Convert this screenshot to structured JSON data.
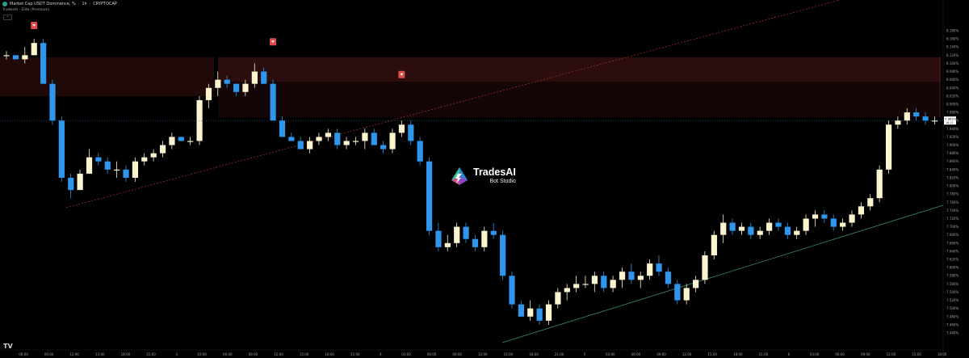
{
  "header": {
    "symbol_title": "Market Cap USDT Dominance, %",
    "interval": "1h",
    "exchange": "CRYPTOCAP",
    "indicator_label": "TradesAI - Elite (Premium)",
    "collapse_label": "^"
  },
  "logo": {
    "name": "TradesAI",
    "sub": "Bot Studio"
  },
  "tv_logo": "TV",
  "price_axis": {
    "labels": [
      "8.180%",
      "8.160%",
      "8.140%",
      "8.120%",
      "8.100%",
      "8.080%",
      "8.060%",
      "8.040%",
      "8.020%",
      "8.000%",
      "7.980%",
      "7.960%",
      "7.940%",
      "7.920%",
      "7.900%",
      "7.880%",
      "7.860%",
      "7.840%",
      "7.820%",
      "7.800%",
      "7.780%",
      "7.760%",
      "7.740%",
      "7.720%",
      "7.700%",
      "7.680%",
      "7.660%",
      "7.640%",
      "7.620%",
      "7.600%",
      "7.580%",
      "7.560%",
      "7.540%",
      "7.520%",
      "7.500%",
      "7.480%",
      "7.460%",
      "7.440%"
    ],
    "current_price": "7.962%",
    "current_sub": "16:15"
  },
  "time_axis": [
    "06:00",
    "09:00",
    "12:00",
    "15:00",
    "18:00",
    "21:00",
    "3",
    "03:00",
    "06:00",
    "09:00",
    "12:00",
    "15:00",
    "18:00",
    "21:00",
    "4",
    "03:00",
    "06:00",
    "09:00",
    "12:00",
    "15:00",
    "18:00",
    "21:00",
    "5",
    "03:00",
    "06:00",
    "09:00",
    "12:00",
    "15:00",
    "18:00",
    "21:00",
    "6",
    "03:00",
    "06:00",
    "09:00",
    "12:00",
    "15:00",
    "18:00"
  ],
  "colors": {
    "up": "#fcf3cf",
    "down": "#2e96ec",
    "zone": "#c23a3a",
    "signal": "#e04a4a",
    "trend_up": "#3c8a6a",
    "trend_red": "#a33",
    "price_line": "#2e6fb5"
  },
  "chart_data": {
    "type": "candlestick",
    "symbol": "Market Cap USDT Dominance, %",
    "interval": "1h",
    "ylim": [
      7.43,
      8.19
    ],
    "candles_ohlc": [
      [
        8.12,
        8.13,
        8.11,
        8.12
      ],
      [
        8.12,
        8.12,
        8.11,
        8.11
      ],
      [
        8.11,
        8.14,
        8.1,
        8.12
      ],
      [
        8.12,
        8.16,
        8.12,
        8.15
      ],
      [
        8.15,
        8.16,
        8.05,
        8.05
      ],
      [
        8.05,
        8.06,
        7.95,
        7.96
      ],
      [
        7.96,
        7.97,
        7.81,
        7.82
      ],
      [
        7.82,
        7.83,
        7.77,
        7.79
      ],
      [
        7.79,
        7.84,
        7.79,
        7.83
      ],
      [
        7.83,
        7.89,
        7.83,
        7.87
      ],
      [
        7.87,
        7.88,
        7.85,
        7.86
      ],
      [
        7.86,
        7.87,
        7.83,
        7.84
      ],
      [
        7.84,
        7.86,
        7.82,
        7.84
      ],
      [
        7.84,
        7.85,
        7.81,
        7.82
      ],
      [
        7.82,
        7.87,
        7.81,
        7.86
      ],
      [
        7.86,
        7.88,
        7.85,
        7.87
      ],
      [
        7.87,
        7.89,
        7.86,
        7.88
      ],
      [
        7.88,
        7.91,
        7.87,
        7.9
      ],
      [
        7.9,
        7.93,
        7.89,
        7.92
      ],
      [
        7.92,
        7.92,
        7.91,
        7.91
      ],
      [
        7.91,
        7.92,
        7.9,
        7.91
      ],
      [
        7.91,
        8.02,
        7.9,
        8.01
      ],
      [
        8.01,
        8.05,
        7.99,
        8.04
      ],
      [
        8.04,
        8.08,
        8.02,
        8.06
      ],
      [
        8.06,
        8.07,
        8.04,
        8.05
      ],
      [
        8.05,
        8.05,
        8.02,
        8.03
      ],
      [
        8.03,
        8.06,
        8.02,
        8.05
      ],
      [
        8.05,
        8.1,
        8.04,
        8.08
      ],
      [
        8.08,
        8.09,
        8.05,
        8.05
      ],
      [
        8.05,
        8.06,
        7.96,
        7.96
      ],
      [
        7.96,
        7.97,
        7.92,
        7.92
      ],
      [
        7.92,
        7.93,
        7.91,
        7.91
      ],
      [
        7.91,
        7.92,
        7.89,
        7.89
      ],
      [
        7.89,
        7.92,
        7.88,
        7.91
      ],
      [
        7.91,
        7.93,
        7.9,
        7.92
      ],
      [
        7.92,
        7.94,
        7.91,
        7.93
      ],
      [
        7.93,
        7.94,
        7.89,
        7.9
      ],
      [
        7.9,
        7.92,
        7.89,
        7.91
      ],
      [
        7.91,
        7.92,
        7.9,
        7.91
      ],
      [
        7.91,
        7.94,
        7.89,
        7.93
      ],
      [
        7.93,
        7.94,
        7.9,
        7.9
      ],
      [
        7.9,
        7.91,
        7.88,
        7.89
      ],
      [
        7.89,
        7.94,
        7.88,
        7.93
      ],
      [
        7.93,
        7.96,
        7.92,
        7.95
      ],
      [
        7.95,
        7.96,
        7.9,
        7.91
      ],
      [
        7.91,
        7.92,
        7.85,
        7.86
      ],
      [
        7.86,
        7.87,
        7.68,
        7.69
      ],
      [
        7.69,
        7.71,
        7.64,
        7.65
      ],
      [
        7.65,
        7.68,
        7.64,
        7.66
      ],
      [
        7.66,
        7.71,
        7.65,
        7.7
      ],
      [
        7.7,
        7.71,
        7.66,
        7.67
      ],
      [
        7.67,
        7.68,
        7.64,
        7.65
      ],
      [
        7.65,
        7.7,
        7.64,
        7.69
      ],
      [
        7.69,
        7.71,
        7.67,
        7.68
      ],
      [
        7.68,
        7.69,
        7.57,
        7.58
      ],
      [
        7.58,
        7.59,
        7.5,
        7.51
      ],
      [
        7.51,
        7.52,
        7.48,
        7.48
      ],
      [
        7.48,
        7.52,
        7.47,
        7.5
      ],
      [
        7.5,
        7.51,
        7.46,
        7.47
      ],
      [
        7.47,
        7.52,
        7.46,
        7.51
      ],
      [
        7.51,
        7.55,
        7.5,
        7.54
      ],
      [
        7.54,
        7.56,
        7.52,
        7.55
      ],
      [
        7.55,
        7.58,
        7.54,
        7.56
      ],
      [
        7.56,
        7.58,
        7.55,
        7.56
      ],
      [
        7.56,
        7.59,
        7.54,
        7.58
      ],
      [
        7.58,
        7.59,
        7.54,
        7.55
      ],
      [
        7.55,
        7.58,
        7.54,
        7.57
      ],
      [
        7.57,
        7.6,
        7.55,
        7.59
      ],
      [
        7.59,
        7.61,
        7.56,
        7.57
      ],
      [
        7.57,
        7.59,
        7.55,
        7.58
      ],
      [
        7.58,
        7.62,
        7.57,
        7.61
      ],
      [
        7.61,
        7.63,
        7.58,
        7.59
      ],
      [
        7.59,
        7.6,
        7.55,
        7.56
      ],
      [
        7.56,
        7.57,
        7.51,
        7.52
      ],
      [
        7.52,
        7.56,
        7.51,
        7.55
      ],
      [
        7.55,
        7.58,
        7.54,
        7.57
      ],
      [
        7.57,
        7.64,
        7.56,
        7.63
      ],
      [
        7.63,
        7.69,
        7.62,
        7.68
      ],
      [
        7.68,
        7.73,
        7.66,
        7.71
      ],
      [
        7.71,
        7.72,
        7.68,
        7.69
      ],
      [
        7.69,
        7.71,
        7.68,
        7.7
      ],
      [
        7.7,
        7.71,
        7.67,
        7.68
      ],
      [
        7.68,
        7.7,
        7.67,
        7.69
      ],
      [
        7.69,
        7.72,
        7.68,
        7.71
      ],
      [
        7.71,
        7.72,
        7.69,
        7.7
      ],
      [
        7.7,
        7.71,
        7.67,
        7.68
      ],
      [
        7.68,
        7.7,
        7.67,
        7.69
      ],
      [
        7.69,
        7.73,
        7.68,
        7.72
      ],
      [
        7.72,
        7.74,
        7.7,
        7.73
      ],
      [
        7.73,
        7.74,
        7.71,
        7.72
      ],
      [
        7.72,
        7.73,
        7.69,
        7.7
      ],
      [
        7.7,
        7.72,
        7.69,
        7.71
      ],
      [
        7.71,
        7.74,
        7.7,
        7.73
      ],
      [
        7.73,
        7.76,
        7.72,
        7.75
      ],
      [
        7.75,
        7.78,
        7.74,
        7.77
      ],
      [
        7.77,
        7.85,
        7.76,
        7.84
      ],
      [
        7.84,
        7.96,
        7.83,
        7.95
      ],
      [
        7.95,
        7.97,
        7.94,
        7.96
      ],
      [
        7.96,
        7.99,
        7.95,
        7.98
      ],
      [
        7.98,
        7.99,
        7.96,
        7.97
      ],
      [
        7.97,
        7.98,
        7.95,
        7.96
      ],
      [
        7.96,
        7.97,
        7.95,
        7.96
      ]
    ],
    "resistance_zone": {
      "top": 8.115,
      "mid": 8.055,
      "bottom": 7.968
    },
    "signals": [
      {
        "type": "sell"
      },
      {
        "type": "sell"
      },
      {
        "type": "sell"
      }
    ]
  }
}
